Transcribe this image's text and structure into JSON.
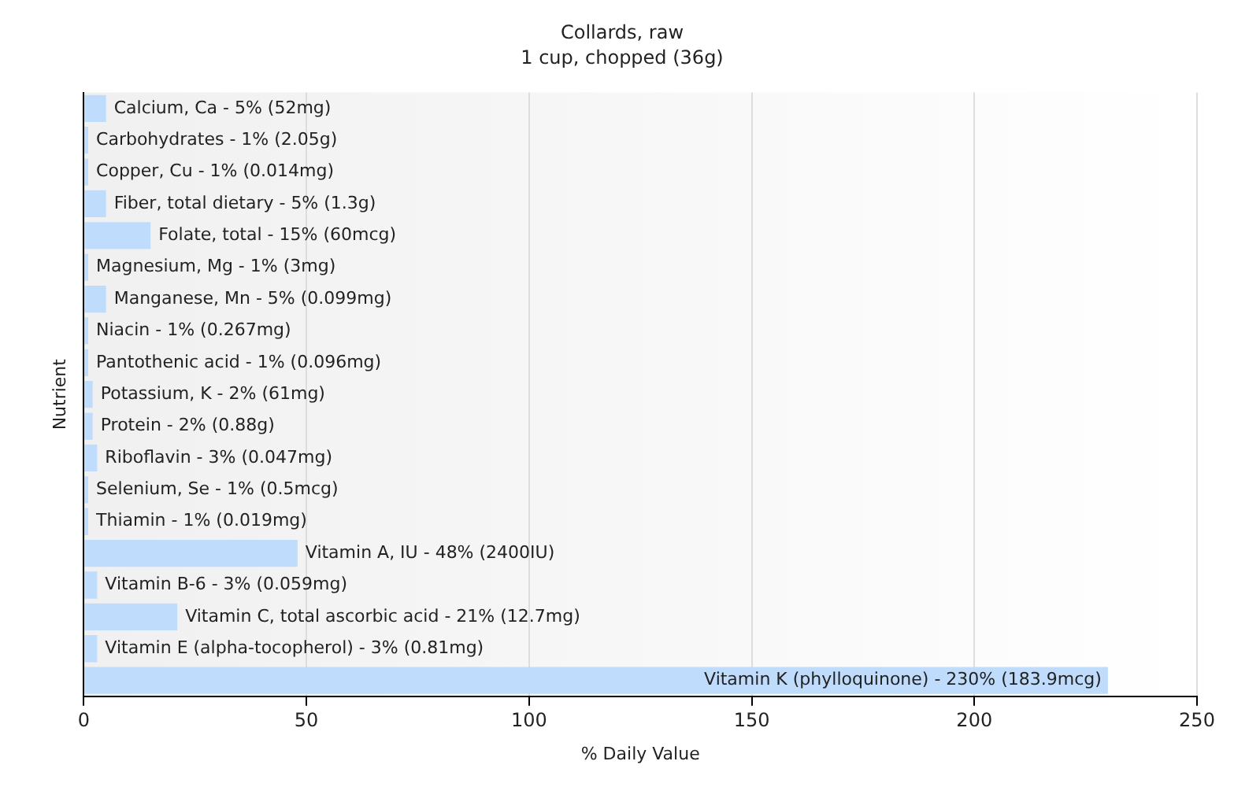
{
  "chart_data": {
    "type": "bar",
    "orientation": "horizontal",
    "title": "Collards, raw",
    "subtitle": "1 cup, chopped (36g)",
    "xlabel": "% Daily Value",
    "ylabel": "Nutrient",
    "categories": [
      null,
      null,
      null,
      null,
      null,
      null,
      null,
      null,
      null,
      null,
      null,
      null,
      null,
      null,
      null,
      null,
      null,
      null,
      null
    ],
    "values": [
      5,
      1,
      1,
      5,
      15,
      1,
      5,
      1,
      1,
      2,
      2,
      3,
      1,
      1,
      48,
      3,
      21,
      3,
      230
    ],
    "annotations": [
      {
        "text": "Calcium, Ca - 5% (52mg)",
        "x": 5
      },
      {
        "text": "Carbohydrates - 1% (2.05g)",
        "x": 1
      },
      {
        "text": "Copper, Cu - 1% (0.014mg)",
        "x": 1
      },
      {
        "text": "Fiber, total dietary - 5% (1.3g)",
        "x": 5
      },
      {
        "text": "Folate, total - 15% (60mcg)",
        "x": 15
      },
      {
        "text": "Magnesium, Mg - 1% (3mg)",
        "x": 1
      },
      {
        "text": "Manganese, Mn - 5% (0.099mg)",
        "x": 5
      },
      {
        "text": "Niacin - 1% (0.267mg)",
        "x": 1
      },
      {
        "text": "Pantothenic acid - 1% (0.096mg)",
        "x": 1
      },
      {
        "text": "Potassium, K - 2% (61mg)",
        "x": 2
      },
      {
        "text": "Protein - 2% (0.88g)",
        "x": 2
      },
      {
        "text": "Riboflavin - 3% (0.047mg)",
        "x": 3
      },
      {
        "text": "Selenium, Se - 1% (0.5mcg)",
        "x": 1
      },
      {
        "text": "Thiamin - 1% (0.019mg)",
        "x": 1
      },
      {
        "text": "Vitamin A, IU - 48% (2400IU)",
        "x": 48
      },
      {
        "text": "Vitamin B-6 - 3% (0.059mg)",
        "x": 3
      },
      {
        "text": "Vitamin C, total ascorbic acid - 21% (12.7mg)",
        "x": 21
      },
      {
        "text": "Vitamin E (alpha-tocopherol) - 3% (0.81mg)",
        "x": 3
      },
      {
        "text": "Vitamin K (phylloquinone) - 230% (183.9mcg)",
        "x": 230
      }
    ],
    "color": "#c0dcfc",
    "xlim": [
      0,
      250
    ],
    "xticks": [
      0,
      50,
      100,
      150,
      200,
      250
    ],
    "grid": "x",
    "legend": false
  }
}
